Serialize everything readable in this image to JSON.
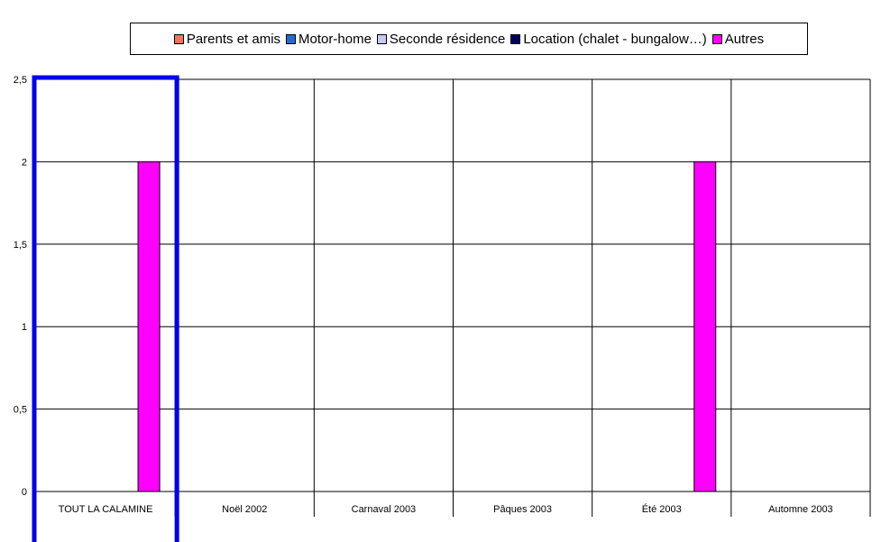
{
  "chart_data": {
    "type": "bar",
    "categories": [
      "TOUT LA CALAMINE",
      "Noël 2002",
      "Carnaval 2003",
      "Pâques 2003",
      "Été 2003",
      "Automne 2003"
    ],
    "series": [
      {
        "name": "Parents et amis",
        "color": "#ff6f61",
        "values": [
          0,
          0,
          0,
          0,
          0,
          0
        ]
      },
      {
        "name": "Motor-home",
        "color": "#1f6fd1",
        "values": [
          0,
          0,
          0,
          0,
          0,
          0
        ]
      },
      {
        "name": "Seconde résidence",
        "color": "#c8c8f0",
        "values": [
          0,
          0,
          0,
          0,
          0,
          0
        ]
      },
      {
        "name": "Location (chalet - bungalow…)",
        "color": "#000066",
        "values": [
          0,
          0,
          0,
          0,
          0,
          0
        ]
      },
      {
        "name": "Autres",
        "color": "#ff00ff",
        "values": [
          2,
          0,
          0,
          0,
          2,
          0
        ]
      }
    ],
    "yticks": [
      "0",
      "0,5",
      "1",
      "1,5",
      "2",
      "2,5"
    ],
    "ylim": [
      0,
      2.5
    ],
    "grid": true,
    "legend_position": "top",
    "highlight_category": "TOUT LA CALAMINE",
    "highlight_color": "#0000ee"
  }
}
